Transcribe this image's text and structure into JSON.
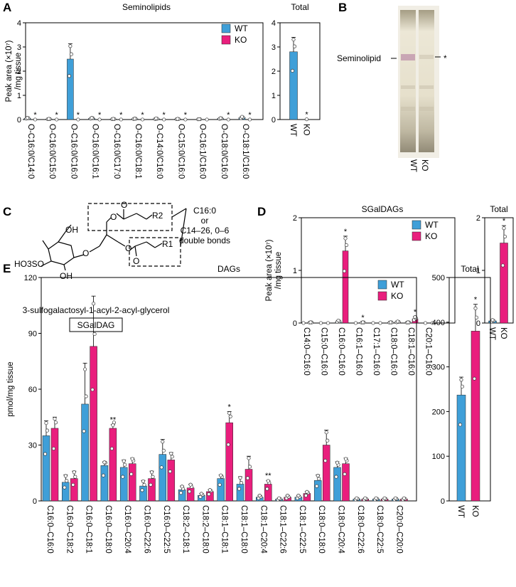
{
  "colors": {
    "wt": "#3f9fd8",
    "ko": "#e91e7d",
    "axis": "#000000",
    "point": "#ffffff"
  },
  "panels": {
    "a": {
      "label": "A"
    },
    "b": {
      "label": "B",
      "band_label": "Seminolipid",
      "band_star": "*",
      "lane_wt": "WT",
      "lane_ko": "KO"
    },
    "c": {
      "label": "C",
      "compound_name": "3-sulfogalactosyl-1-acyl-2-acyl-glycerol",
      "abbrev": "SGalDAG",
      "acyl_note": [
        "C16:0",
        "or",
        "C14–26, 0–6",
        "double bonds"
      ],
      "group_r1": "R1",
      "group_r2": "R2",
      "atoms": {
        "oh1": "OH",
        "oh2": "OH",
        "so3": "HO3SO",
        "o": "O"
      }
    },
    "d": {
      "label": "D"
    },
    "e": {
      "label": "E"
    }
  },
  "chart_data": [
    {
      "id": "A-main",
      "type": "bar",
      "title": "Seminolipids",
      "ylabel_line1": "Peak area (×10⁷)",
      "ylabel_line2": "/mg tissue",
      "ylim": [
        0,
        4
      ],
      "yticks": [
        0,
        1,
        2,
        3,
        4
      ],
      "categories": [
        "O-C16:0/C14:0",
        "O-C16:0/C15:0",
        "O-C16:0/C16:0",
        "O-C16:0/C16:1",
        "O-C16:0/C17:0",
        "O-C16:0/C18:1",
        "O-C14:0/C16:0",
        "O-C15:0/C16:0",
        "O-C16:1/C16:0",
        "O-C18:0/C16:0",
        "O-C18:1/C16:0"
      ],
      "series": [
        {
          "name": "WT",
          "values": [
            0.05,
            0.02,
            2.5,
            0.05,
            0.02,
            0.03,
            0.03,
            0.02,
            0.01,
            0.04,
            0.08
          ],
          "errors": [
            0.02,
            0.01,
            0.63,
            0.02,
            0.01,
            0.01,
            0.02,
            0.01,
            0.005,
            0.02,
            0.04
          ]
        },
        {
          "name": "KO",
          "values": [
            0,
            0,
            0,
            0,
            0,
            0,
            0,
            0,
            0,
            0,
            0
          ],
          "errors": [
            0,
            0,
            0,
            0,
            0,
            0,
            0,
            0,
            0,
            0,
            0
          ]
        }
      ],
      "significance": [
        "*",
        "*",
        "*",
        "*",
        "*",
        "*",
        "*",
        "*",
        "",
        "*",
        "*"
      ],
      "legend": [
        "WT",
        "KO"
      ]
    },
    {
      "id": "A-total",
      "type": "bar",
      "title": "Total",
      "ylim": [
        0,
        4
      ],
      "yticks": [
        0,
        1,
        2,
        3,
        4
      ],
      "categories": [
        "WT",
        "KO"
      ],
      "values": [
        2.8,
        0.01
      ],
      "errors": [
        0.6,
        0
      ],
      "significance": [
        "",
        "*"
      ]
    },
    {
      "id": "D-main",
      "type": "bar",
      "title": "SGalDAGs",
      "ylabel_line1": "Peak area (×10⁷)",
      "ylabel_line2": "/mg tissue",
      "ylim": [
        0,
        2
      ],
      "yticks": [
        0,
        1,
        2
      ],
      "categories": [
        "C14:0–C16:0",
        "C15:0–C16:0",
        "C16:0–C16:0",
        "C16:1–C16:0",
        "C17:1–C16:0",
        "C18:0–C16:0",
        "C18:1–C16:0",
        "C20:1–C16:0"
      ],
      "series": [
        {
          "name": "WT",
          "values": [
            0,
            0,
            0.03,
            0,
            0,
            0.01,
            0.01,
            0
          ],
          "errors": [
            0,
            0,
            0.02,
            0,
            0,
            0.005,
            0.005,
            0
          ]
        },
        {
          "name": "KO",
          "values": [
            0.01,
            0,
            1.37,
            0.01,
            0,
            0.02,
            0.08,
            0
          ],
          "errors": [
            0.005,
            0,
            0.28,
            0.005,
            0,
            0.01,
            0.04,
            0
          ]
        }
      ],
      "significance": [
        "",
        "",
        "*",
        "*",
        "",
        "",
        "*",
        ""
      ],
      "legend": [
        "WT",
        "KO"
      ]
    },
    {
      "id": "D-total",
      "type": "bar",
      "title": "Total",
      "ylim": [
        0,
        2
      ],
      "yticks": [
        0,
        1,
        2
      ],
      "categories": [
        "WT",
        "KO"
      ],
      "values": [
        0.04,
        1.52
      ],
      "errors": [
        0.02,
        0.33
      ],
      "significance": [
        "",
        "*"
      ]
    },
    {
      "id": "E-main",
      "type": "bar",
      "title": "DAGs",
      "ylabel": "pmol/mg tissue",
      "ylim": [
        0,
        120
      ],
      "yticks": [
        0,
        30,
        60,
        90,
        120
      ],
      "categories": [
        "C16:0–C16:0",
        "C16:0–C18:2",
        "C16:0–C18:1",
        "C16:0–C18:0",
        "C16:0–C20:4",
        "C16:0–C22:6",
        "C16:0–C22:5",
        "C18:2–C18:1",
        "C18:2–C18:0",
        "C18:1–C18:1",
        "C18:1–C18:0",
        "C18:1–C20:4",
        "C18:1–C22:6",
        "C18:1–C22:5",
        "C18:0–C18:0",
        "C18:0–C20:4",
        "C18:0–C22:6",
        "C18:0–C22:5",
        "C20:0–C20:0"
      ],
      "series": [
        {
          "name": "WT",
          "values": [
            35,
            10,
            52,
            19,
            18,
            8,
            25,
            6,
            3,
            12,
            9,
            2,
            1,
            2,
            11,
            18,
            1,
            1,
            1
          ],
          "errors": [
            8,
            4,
            22,
            2,
            4,
            3,
            8,
            2,
            1,
            2,
            4,
            1,
            0.5,
            1,
            3,
            3,
            0.5,
            0.5,
            0.5
          ]
        },
        {
          "name": "KO",
          "values": [
            39,
            12,
            83,
            39,
            20,
            12,
            22,
            7,
            5,
            42,
            17,
            9,
            2,
            4,
            30,
            20,
            1,
            1,
            1
          ],
          "errors": [
            6,
            4,
            27,
            2,
            3,
            4,
            4,
            2,
            1,
            6,
            7,
            2,
            1,
            1,
            8,
            3,
            0.5,
            0.5,
            0.5
          ]
        }
      ],
      "significance": [
        "",
        "",
        "",
        "**",
        "",
        "",
        "",
        "",
        "",
        "*",
        "",
        "**",
        "",
        "",
        "",
        "",
        "",
        "",
        ""
      ],
      "legend": [
        "WT",
        "KO"
      ]
    },
    {
      "id": "E-total",
      "type": "bar",
      "title": "Total",
      "ylim": [
        0,
        500
      ],
      "yticks": [
        0,
        100,
        200,
        300,
        400,
        500
      ],
      "categories": [
        "WT",
        "KO"
      ],
      "values": [
        237,
        380
      ],
      "errors": [
        40,
        60
      ],
      "significance": [
        "",
        "*"
      ]
    }
  ]
}
